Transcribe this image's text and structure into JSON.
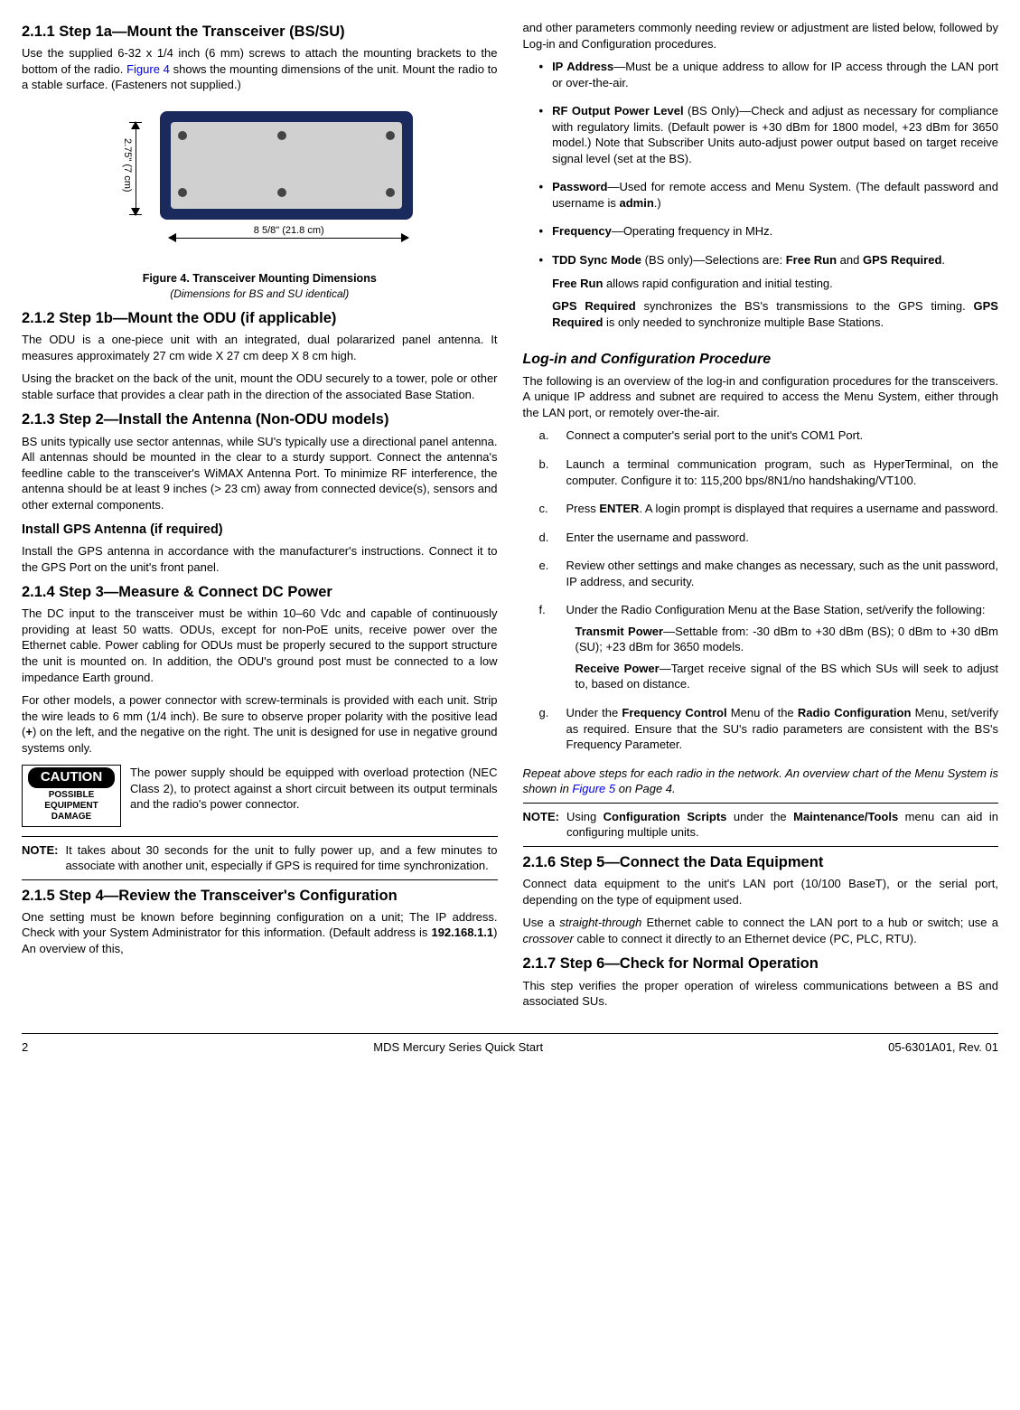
{
  "left": {
    "sec211_title": "2.1.1   Step 1a—Mount the Transceiver (BS/SU)",
    "sec211_p1a": "Use the supplied 6-32 x 1/4 inch (6 mm) screws to attach the mounting brackets to the bottom of the radio. ",
    "sec211_p1_link": "Figure 4",
    "sec211_p1b": " shows the mounting dimensions of the unit. Mount the radio to a stable surface. (Fasteners not supplied.)",
    "dim_v_label": "2.75\" (7 cm)",
    "dim_h_label": "8 5/8\" (21.8 cm)",
    "fig4_caption": "Figure 4. Transceiver Mounting Dimensions",
    "fig4_sub": "(Dimensions for BS and SU identical)",
    "sec212_title": "2.1.2   Step 1b—Mount the ODU (if applicable)",
    "sec212_p1": "The ODU is a one-piece unit with an integrated, dual polararized panel antenna. It measures approximately 27 cm wide X 27 cm deep X 8 cm high.",
    "sec212_p2": "Using the bracket on the back of the unit, mount the ODU securely to a tower, pole or other stable surface that provides a clear path in the direction of the associated Base Station.",
    "sec213_title": "2.1.3   Step 2—Install the Antenna (Non-ODU models)",
    "sec213_p1": "BS units typically use sector antennas, while SU's typically use a directional panel antenna. All antennas should be mounted in the clear to a sturdy support. Connect the antenna's feedline cable to the transceiver's WiMAX Antenna Port. To minimize RF interference, the antenna should be at least 9 inches (> 23 cm) away from connected device(s), sensors and other external components.",
    "gps_title": "Install GPS Antenna (if required)",
    "gps_p": "Install the GPS antenna in accordance with the manufacturer's instructions. Connect it to the GPS Port on the unit's front panel.",
    "sec214_title": "2.1.4   Step 3—Measure & Connect DC Power",
    "sec214_p1": "The DC input to the transceiver must be within 10–60 Vdc and capable of continuously providing at least 50 watts. ODUs, except for non-PoE units, receive power over the Ethernet cable. Power cabling for ODUs must be properly secured to the support structure the unit is mounted on. In addition, the ODU's ground post must be connected to a low impedance Earth ground.",
    "sec214_p2a": "For other models, a power connector with screw-terminals is provided with each unit. Strip the wire leads to 6 mm (1/4 inch). Be sure to observe proper polarity with the positive lead (",
    "sec214_p2_plus": "+",
    "sec214_p2b": ") on the left, and the negative on the right. The unit is designed for use in negative ground systems only.",
    "caution_head": "CAUTION",
    "caution_sub": "POSSIBLE EQUIPMENT DAMAGE",
    "caution_text": "The power supply should be equipped with overload protection (NEC Class 2), to protect against a short circuit between its output terminals and the radio's power connector.",
    "note1_label": "NOTE:",
    "note1_text": "It takes about 30 seconds for the unit to fully power up, and a few minutes to associate with another unit, especially if GPS is required for time synchronization.",
    "sec215_title": "2.1.5   Step 4—Review the Transceiver's Configuration",
    "sec215_p1a": "One setting must be known before beginning configuration on a unit; The IP address. Check with your System Administrator for this information. (Default address is ",
    "sec215_p1_bold": "192.168.1.1",
    "sec215_p1b": ") An overview of this,"
  },
  "right": {
    "cont_p": "and other parameters commonly needing review or adjustment are listed below, followed by Log-in and Configuration procedures.",
    "b1_bold": "IP Address",
    "b1_text": "—Must be a unique address to allow for IP access through the LAN port or over-the-air.",
    "b2_bold": "RF Output Power Level",
    "b2_text": " (BS Only)—Check and adjust as necessary for compliance with regulatory limits. (Default power is +30 dBm for 1800 model, +23 dBm for 3650 model.) Note that Subscriber Units auto-adjust power output based on target receive signal level (set at the BS).",
    "b3_bold": "Password",
    "b3_text_a": "—Used for remote access and Menu System. (The default password and username is ",
    "b3_text_bold": "admin",
    "b3_text_b": ".)",
    "b4_bold": "Frequency",
    "b4_text": "—Operating frequency in MHz.",
    "b5_bold": "TDD Sync Mode",
    "b5_text_a": " (BS only)—Selections are: ",
    "b5_text_bold1": "Free Run",
    "b5_text_mid": " and ",
    "b5_text_bold2": "GPS Required",
    "b5_text_end": ".",
    "b5_p2_bold": "Free Run",
    "b5_p2_text": " allows rapid configuration and initial testing.",
    "b5_p3_bold1": "GPS Required",
    "b5_p3_text_a": " synchronizes the BS's transmissions to the GPS timing. ",
    "b5_p3_bold2": "GPS Required",
    "b5_p3_text_b": " is only needed to synchronize multiple Base Stations.",
    "login_title": "Log-in and Configuration Procedure",
    "login_p": "The following is an overview of the log-in and configuration procedures for the transceivers. A unique IP address and subnet are required to access the Menu System, either through the LAN port, or remotely over-the-air.",
    "la_letter": "a.",
    "la_text": "Connect a computer's serial port to the unit's COM1 Port.",
    "lb_letter": "b.",
    "lb_text": "Launch a terminal communication program, such as HyperTerminal, on the computer. Configure it to: 115,200 bps/8N1/no handshaking/VT100.",
    "lc_letter": "c.",
    "lc_text_a": "Press ",
    "lc_text_bold": "ENTER",
    "lc_text_b": ". A login prompt is displayed that requires a username and password.",
    "ld_letter": "d.",
    "ld_text": "Enter the username and password.",
    "le_letter": "e.",
    "le_text": "Review other settings and make changes as necessary, such as the unit password, IP address, and security.",
    "lf_letter": "f.",
    "lf_text": "Under the Radio Configuration Menu at the Base Station, set/verify the following:",
    "lf_sub1_bold": "Transmit Power",
    "lf_sub1_text": "—Settable from: -30 dBm to +30 dBm (BS); 0 dBm to +30 dBm (SU); +23 dBm for 3650 models.",
    "lf_sub2_bold": "Receive Power",
    "lf_sub2_text": "—Target receive signal of the BS which SUs will seek to adjust to, based on distance.",
    "lg_letter": "g.",
    "lg_text_a": "Under the ",
    "lg_text_bold1": "Frequency Control",
    "lg_text_mid1": " Menu of the ",
    "lg_text_bold2": "Radio Configuration",
    "lg_text_b": " Menu, set/verify as required. Ensure that the SU's radio parameters are consistent with the BS's Frequency Parameter.",
    "repeat_a": "Repeat above steps for each radio in the network. An overview chart of the Menu System is shown in ",
    "repeat_link": "Figure 5",
    "repeat_b": " on Page 4.",
    "note2_label": "NOTE:",
    "note2_a": "Using ",
    "note2_bold1": "Configuration Scripts",
    "note2_mid": " under the ",
    "note2_bold2": "Maintenance/Tools",
    "note2_b": " menu can aid in configuring multiple units.",
    "sec216_title": "2.1.6   Step 5—Connect the Data Equipment",
    "sec216_p1_a": "Connect data equipment to the unit's ",
    "sec216_p1_lan": "LAN",
    "sec216_p1_b": " port (10/100 BaseT), or the serial port, depending on the type of equipment used.",
    "sec216_p2_a": "Use a ",
    "sec216_p2_em1": "straight-through",
    "sec216_p2_b": " Ethernet cable to connect the ",
    "sec216_p2_lan": "LAN",
    "sec216_p2_c": " port to a hub or switch; use a ",
    "sec216_p2_em2": "crossover",
    "sec216_p2_d": " cable to connect it directly to an Ethernet device (PC, PLC, RTU).",
    "sec217_title": "2.1.7   Step 6—Check for Normal Operation",
    "sec217_p": "This step verifies the proper operation of wireless communications between a BS and associated SUs."
  },
  "footer": {
    "page": "2",
    "title": "MDS Mercury Series Quick Start",
    "rev": "05-6301A01, Rev. 01"
  }
}
